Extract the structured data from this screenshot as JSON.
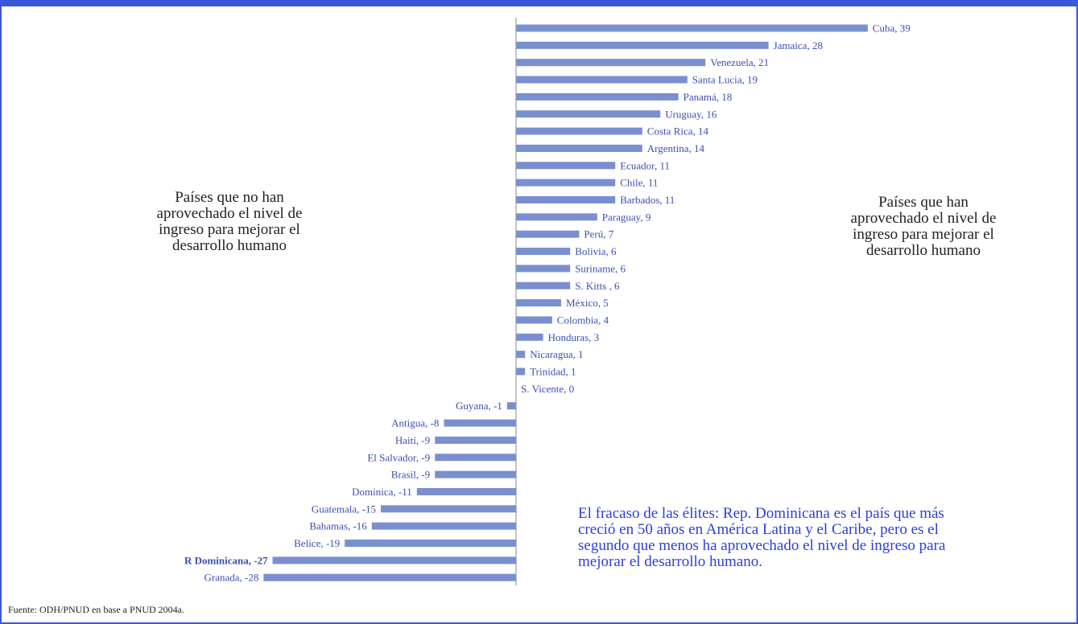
{
  "notes": {
    "left": "Países que no han\naprovechado el nivel de\ningreso para mejorar el\ndesarrollo humano",
    "right": "Países que han\naprovechado el nivel de\ningreso para mejorar el\ndesarrollo humano",
    "highlight": "El fracaso de las élites: Rep. Dominicana es el país que más\ncreció en 50 años en América Latina y el Caribe, pero es el\nsegundo que menos ha aprovechado el nivel de ingreso para\nmejorar el desarrollo humano.",
    "source": "Fuente: ODH/PNUD en base a PNUD 2004a."
  },
  "colors": {
    "bar": "#7a8fcf",
    "label": "#3b4fb0",
    "highlight_text": "#2b3fd6",
    "frame": "#3b57d9"
  },
  "chart_data": {
    "type": "bar",
    "orientation": "horizontal",
    "categories": [
      "Cuba",
      "Jamaica",
      "Venezuela",
      "Santa Lucia",
      "Panamá",
      "Uruguay",
      "Costa Rica",
      "Argentina",
      "Ecuador",
      "Chile",
      "Barbados",
      "Paraguay",
      "Perú",
      "Bolivia",
      "Suriname",
      "S. Kitts",
      "México",
      "Colombia",
      "Honduras",
      "Nicaragua",
      "Trinidad",
      "S. Vicente",
      "Guyana",
      "Antigua",
      "Haití",
      "El Salvador",
      "Brasil",
      "Dominica",
      "Guatemala",
      "Bahamas",
      "Belice",
      "R Dominicana",
      "Granada"
    ],
    "values": [
      39,
      28,
      21,
      19,
      18,
      16,
      14,
      14,
      11,
      11,
      11,
      9,
      7,
      6,
      6,
      6,
      5,
      4,
      3,
      1,
      1,
      0,
      -1,
      -8,
      -9,
      -9,
      -9,
      -11,
      -15,
      -16,
      -19,
      -27,
      -28
    ],
    "labels": [
      "Cuba, 39",
      "Jamaica, 28",
      "Venezuela, 21",
      "Santa Lucia, 19",
      "Panamá, 18",
      "Uruguay, 16",
      "Costa Rica, 14",
      "Argentina, 14",
      "Ecuador, 11",
      "Chile, 11",
      "Barbados, 11",
      "Paraguay, 9",
      "Perú, 7",
      "Bolivia, 6",
      "Suriname, 6",
      "S. Kitts , 6",
      "México, 5",
      "Colombia, 4",
      "Honduras, 3",
      "Nicaragua, 1",
      "Trinidad, 1",
      "S. Vicente, 0",
      "Guyana, -1",
      "Antigua, -8",
      "Haití, -9",
      "El Salvador, -9",
      "Brasil, -9",
      "Dominica, -11",
      "Guatemala, -15",
      "Bahamas, -16",
      "Belice, -19",
      "R Dominicana, -27",
      "Granada, -28"
    ],
    "highlight": "R Dominicana",
    "title": "",
    "xlabel": "",
    "ylabel": "",
    "grid": false
  }
}
